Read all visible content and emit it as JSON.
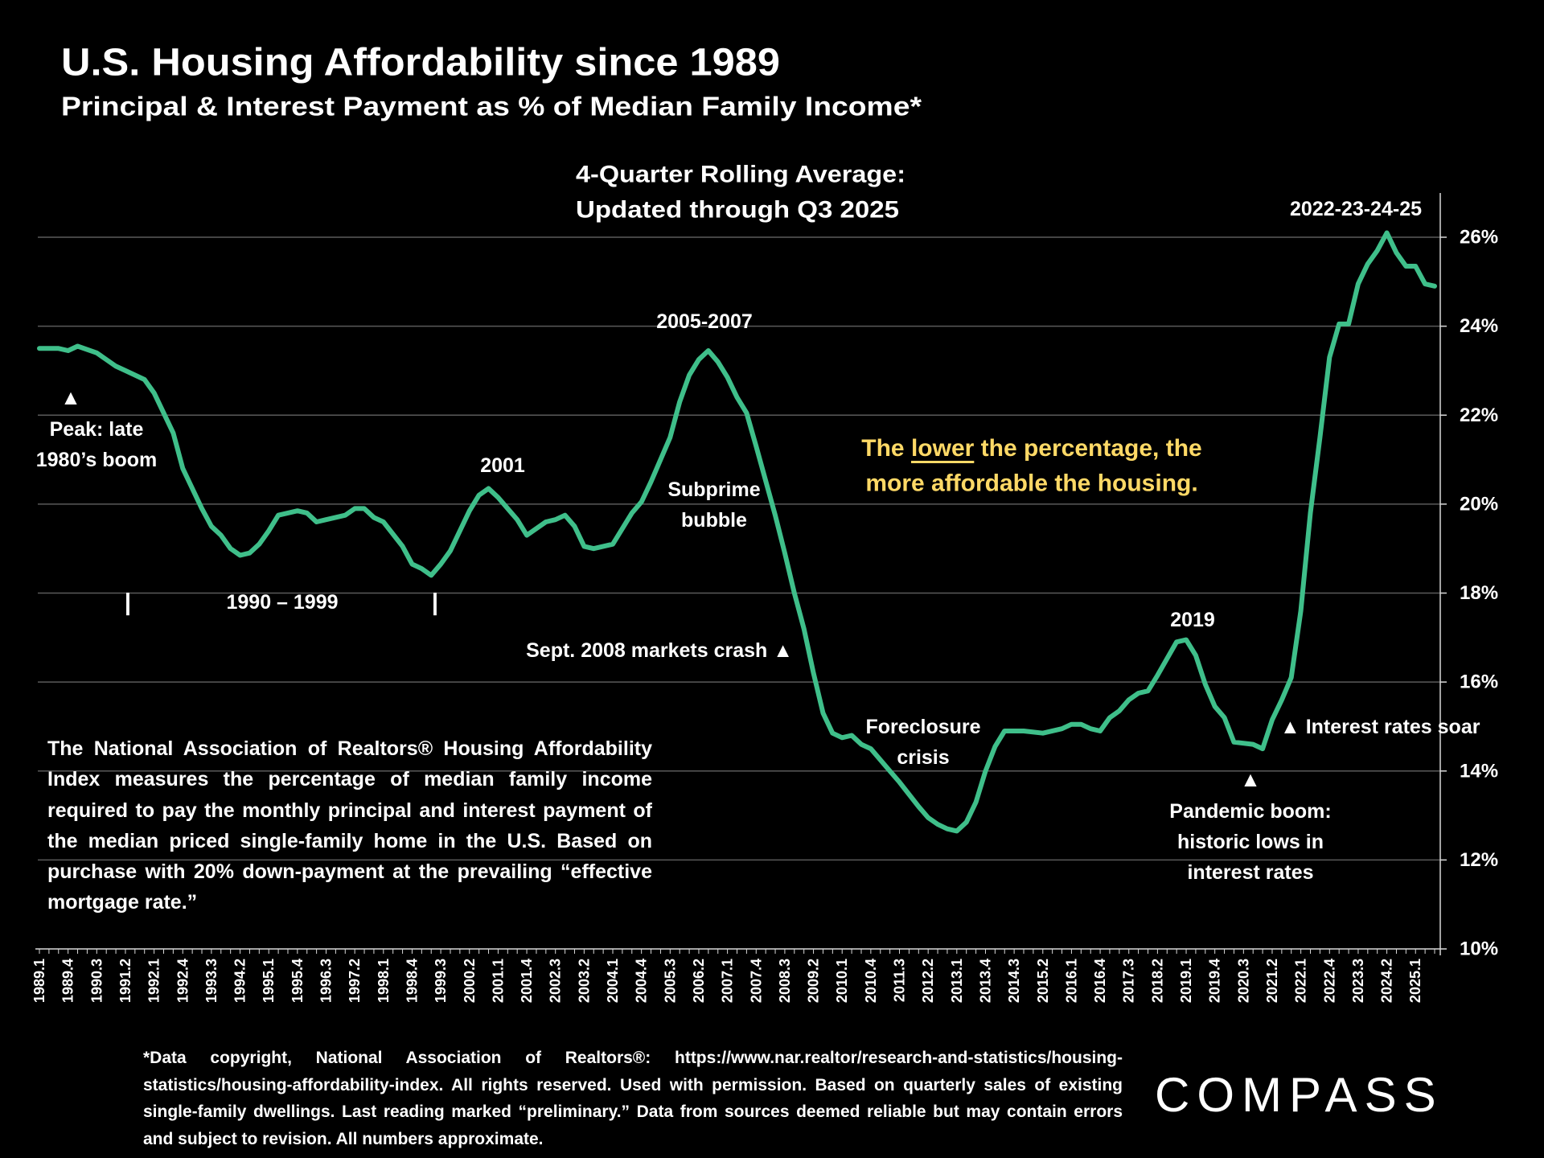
{
  "header": {
    "title": "U.S. Housing Affordability since 1989",
    "subtitle": "Principal & Interest Payment as % of Median Family Income*"
  },
  "chart_data": {
    "type": "line",
    "title": "U.S. Housing Affordability since 1989",
    "subtitle": "Principal & Interest Payment as % of Median Family Income*",
    "chart_note_line1": "4-Quarter Rolling Average:",
    "chart_note_line2": "Updated through Q3 2025",
    "ylim": [
      10,
      26
    ],
    "y_ticks": [
      "10%",
      "12%",
      "14%",
      "16%",
      "18%",
      "20%",
      "22%",
      "24%",
      "26%"
    ],
    "y_axis_position": "right",
    "grid": "horizontal",
    "line_color": "#3FBF8A",
    "x_tick_labels": [
      "1989.1",
      "1989.4",
      "1990.3",
      "1991.2",
      "1992.1",
      "1992.4",
      "1993.3",
      "1994.2",
      "1995.1",
      "1995.4",
      "1996.3",
      "1997.2",
      "1998.1",
      "1998.4",
      "1999.3",
      "2000.2",
      "2001.1",
      "2001.4",
      "2002.3",
      "2003.2",
      "2004.1",
      "2004.4",
      "2005.3",
      "2006.2",
      "2007.1",
      "2007.4",
      "2008.3",
      "2009.2",
      "2010.1",
      "2010.4",
      "2011.3",
      "2012.2",
      "2013.1",
      "2013.4",
      "2014.3",
      "2015.2",
      "2016.1",
      "2016.4",
      "2017.3",
      "2018.2",
      "2019.1",
      "2019.4",
      "2020.3",
      "2021.2",
      "2022.1",
      "2022.4",
      "2023.3",
      "2024.2",
      "2025.1"
    ],
    "x": [
      "1989.1",
      "1989.3",
      "1989.4",
      "1990.1",
      "1990.3",
      "1991.1",
      "1991.2",
      "1991.4",
      "1992.1",
      "1992.3",
      "1992.4",
      "1993.2",
      "1993.3",
      "1993.4",
      "1994.1",
      "1994.2",
      "1994.3",
      "1994.4",
      "1995.1",
      "1995.2",
      "1995.4",
      "1996.1",
      "1996.2",
      "1996.3",
      "1997.1",
      "1997.2",
      "1997.3",
      "1997.4",
      "1998.1",
      "1998.3",
      "1998.4",
      "1999.1",
      "1999.2",
      "1999.3",
      "1999.4",
      "2000.2",
      "2000.3",
      "2000.4",
      "2001.1",
      "2001.3",
      "2001.4",
      "2002.2",
      "2002.3",
      "2002.4",
      "2003.1",
      "2003.2",
      "2003.3",
      "2004.1",
      "2004.2",
      "2004.3",
      "2004.4",
      "2005.1",
      "2005.3",
      "2005.4",
      "2006.1",
      "2006.2",
      "2006.3",
      "2006.4",
      "2007.1",
      "2007.2",
      "2007.3",
      "2007.4",
      "2008.2",
      "2008.3",
      "2008.4",
      "2009.1",
      "2009.2",
      "2009.3",
      "2009.4",
      "2010.1",
      "2010.2",
      "2010.3",
      "2010.4",
      "2011.2",
      "2011.3",
      "2012.1",
      "2012.2",
      "2012.3",
      "2012.4",
      "2013.1",
      "2013.2",
      "2013.3",
      "2013.4",
      "2014.1",
      "2014.2",
      "2014.4",
      "2015.2",
      "2015.4",
      "2016.1",
      "2016.2",
      "2016.3",
      "2016.4",
      "2017.1",
      "2017.2",
      "2017.3",
      "2017.4",
      "2018.1",
      "2018.2",
      "2018.4",
      "2019.1",
      "2019.2",
      "2019.3",
      "2019.4",
      "2020.1",
      "2020.2",
      "2020.4",
      "2021.1",
      "2021.2",
      "2021.3",
      "2021.4",
      "2022.1",
      "2022.2",
      "2022.3",
      "2022.4",
      "2023.1",
      "2023.2",
      "2023.3",
      "2023.4",
      "2024.1",
      "2024.2",
      "2024.3",
      "2024.4",
      "2025.1",
      "2025.2",
      "2025.3"
    ],
    "y": [
      23.5,
      23.5,
      23.45,
      23.55,
      23.4,
      23.1,
      23.0,
      22.8,
      22.5,
      21.6,
      20.8,
      19.9,
      19.5,
      19.3,
      19.0,
      18.85,
      18.9,
      19.1,
      19.4,
      19.75,
      19.85,
      19.8,
      19.6,
      19.65,
      19.75,
      19.9,
      19.9,
      19.7,
      19.6,
      19.05,
      18.65,
      18.55,
      18.4,
      18.65,
      18.95,
      19.85,
      20.2,
      20.35,
      20.15,
      19.65,
      19.3,
      19.6,
      19.65,
      19.75,
      19.5,
      19.05,
      19.0,
      19.1,
      19.45,
      19.8,
      20.05,
      20.5,
      21.5,
      22.3,
      22.9,
      23.25,
      23.45,
      23.2,
      22.85,
      22.4,
      22.05,
      21.3,
      19.75,
      18.9,
      18.0,
      17.2,
      16.2,
      15.3,
      14.85,
      14.75,
      14.8,
      14.6,
      14.5,
      14.0,
      13.75,
      13.2,
      12.95,
      12.8,
      12.7,
      12.65,
      12.85,
      13.3,
      14.0,
      14.55,
      14.9,
      14.9,
      14.85,
      14.95,
      15.05,
      15.05,
      14.95,
      14.9,
      15.2,
      15.35,
      15.6,
      15.75,
      15.8,
      16.15,
      16.9,
      16.95,
      16.6,
      15.95,
      15.45,
      15.2,
      14.65,
      14.6,
      14.5,
      15.15,
      15.6,
      16.1,
      17.6,
      19.8,
      21.5,
      23.3,
      24.05,
      24.05,
      24.95,
      25.4,
      25.7,
      26.1,
      25.65,
      25.35,
      25.35,
      24.95,
      24.9
    ],
    "annotations": {
      "peak_1980s_line1": "Peak: late",
      "peak_1980s_line2": "1980’s boom",
      "decade_range": "1990 – 1999",
      "decade_marker": "|",
      "year_2001": "2001",
      "range_2005_2007": "2005-2007",
      "subprime_line1": "Subprime",
      "subprime_line2": "bubble",
      "crash_2008": "Sept. 2008 markets crash ▲",
      "foreclosure_line1": "Foreclosure",
      "foreclosure_line2": "crisis",
      "year_2019": "2019",
      "rates_soar": "▲ Interest rates soar",
      "pandemic_line1": "Pandemic  boom:",
      "pandemic_line2": "historic lows in",
      "pandemic_line3": "interest rates",
      "range_2022_2025": "2022-23-24-25",
      "triangle": "▲",
      "callout_pre": "The ",
      "callout_underlined": "lower",
      "callout_post": " the percentage, the",
      "callout_line2": "more affordable the housing.",
      "callout_color": "#FFD966"
    }
  },
  "description": "The National Association of Realtors® Housing Affordability Index measures the percentage of median family income required to pay the monthly principal and interest payment of the median priced single-family home in the U.S. Based on purchase with 20% down-payment at the prevailing “effective mortgage rate.”",
  "footnote": "*Data copyright, National Association of Realtors®: https://www.nar.realtor/research-and-statistics/housing-statistics/housing-affordability-index. All rights reserved. Used with permission. Based on quarterly sales of existing single-family dwellings. Last reading marked “preliminary.” Data from sources deemed reliable but may contain errors and subject to revision. All numbers approximate.",
  "logo": "COMPASS"
}
